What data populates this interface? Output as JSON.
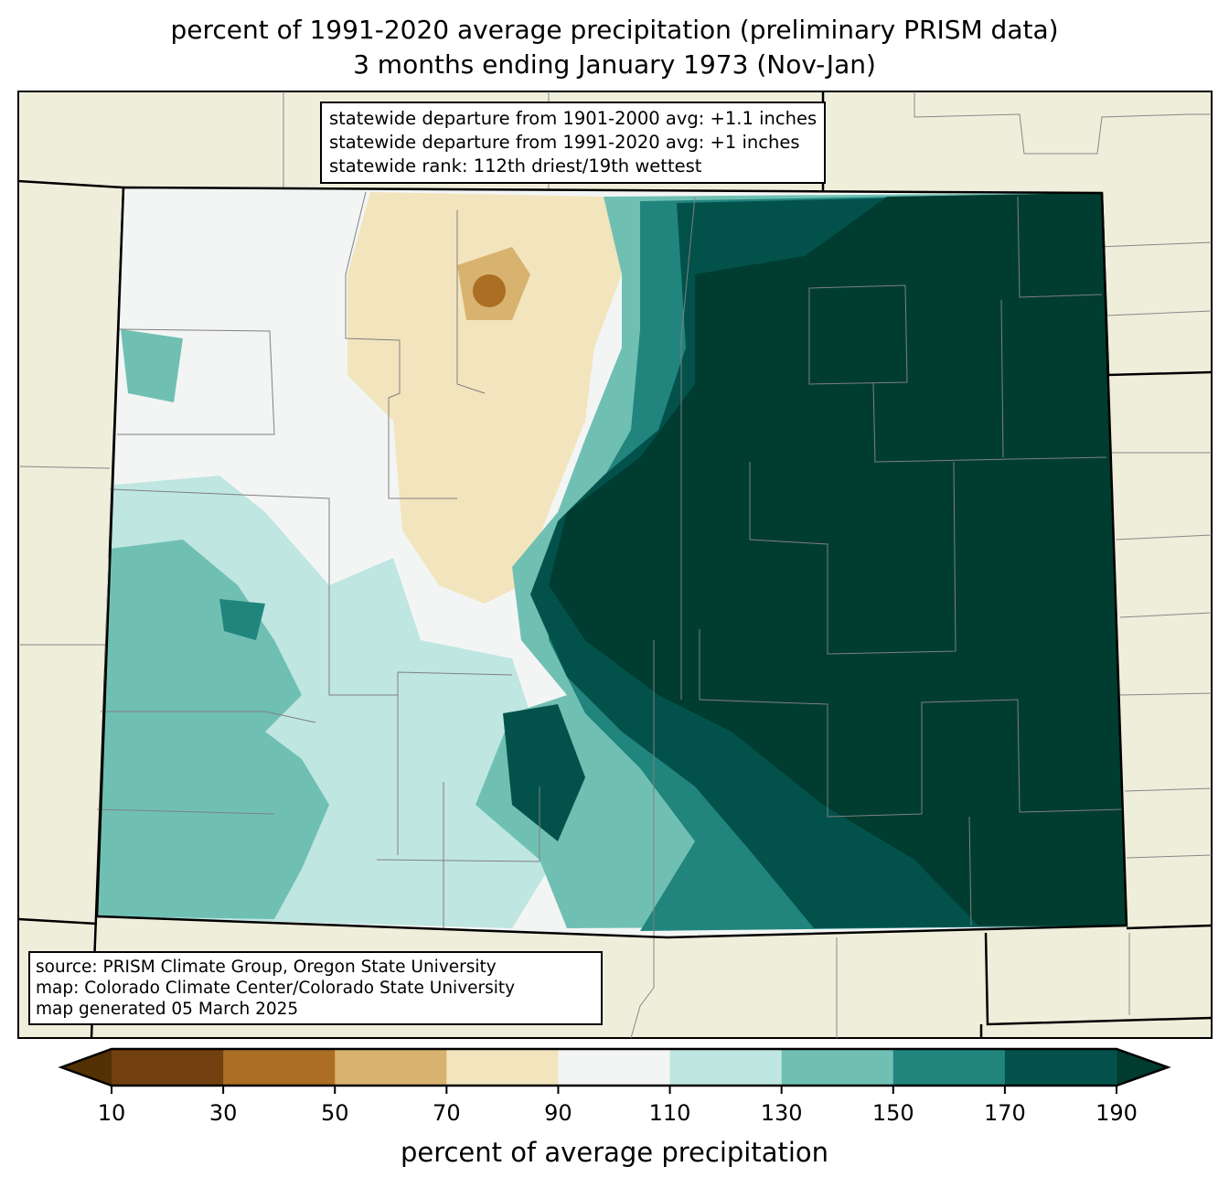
{
  "title": {
    "line1": "percent of 1991-2020 average precipitation (preliminary PRISM data)",
    "line2": "3 months ending January 1973 (Nov-Jan)"
  },
  "stats": {
    "line1": "statewide departure from 1901-2000 avg: +1.1 inches",
    "line2": "statewide departure from 1991-2020 avg: +1 inches",
    "line3": "statewide rank: 112th driest/19th wettest"
  },
  "credits": {
    "line1": "source: PRISM Climate Group, Oregon State University",
    "line2": "map: Colorado Climate Center/Colorado State University",
    "line3": "map generated 05 March 2025"
  },
  "colorbar": {
    "label": "percent of average precipitation",
    "ticks": [
      "10",
      "30",
      "50",
      "70",
      "90",
      "110",
      "130",
      "150",
      "170",
      "190"
    ],
    "under_color": "#543005",
    "over_color": "#003c30",
    "colors": [
      "#734010",
      "#ab6e22",
      "#d8b26f",
      "#f2e4bd",
      "#f3f5f4",
      "#bfe6e1",
      "#6fc0b3",
      "#21857e",
      "#02524b"
    ]
  },
  "colors": {
    "land": "#efeedb",
    "border": "#000000",
    "county": "#808080"
  }
}
